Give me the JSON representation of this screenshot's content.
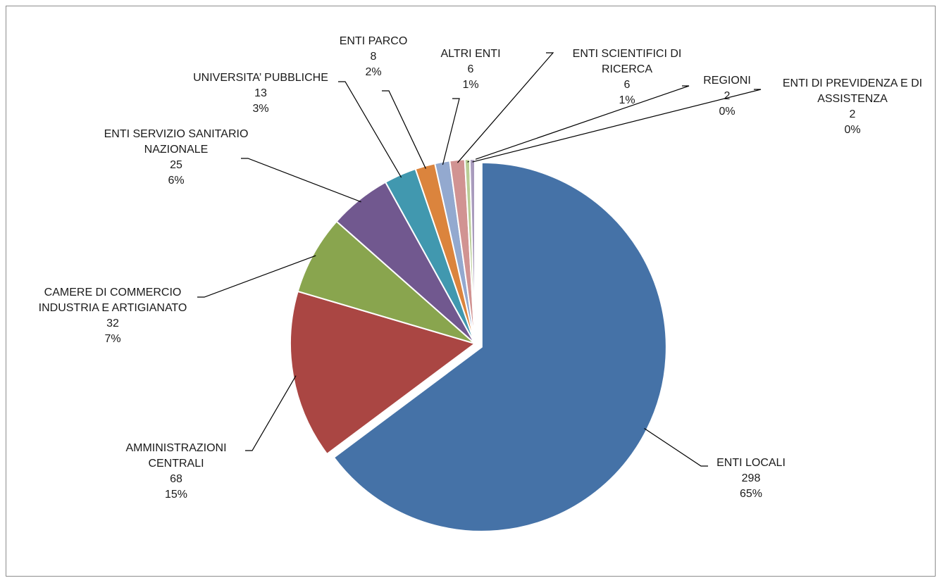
{
  "chart_data": {
    "type": "pie",
    "categories": [
      "ENTI LOCALI",
      "AMMINISTRAZIONI CENTRALI",
      "CAMERE DI COMMERCIO INDUSTRIA E ARTIGIANATO",
      "ENTI SERVIZIO SANITARIO NAZIONALE",
      "UNIVERSITA’ PUBBLICHE",
      "ENTI PARCO",
      "ALTRI ENTI",
      "ENTI SCIENTIFICI DI RICERCA",
      "REGIONI",
      "ENTI DI PREVIDENZA E DI ASSISTENZA"
    ],
    "values": [
      298,
      68,
      32,
      25,
      13,
      8,
      6,
      6,
      2,
      2
    ],
    "percent_labels": [
      "65%",
      "15%",
      "7%",
      "6%",
      "3%",
      "2%",
      "1%",
      "1%",
      "0%",
      "0%"
    ],
    "colors": [
      "#4572a7",
      "#aa4643",
      "#89a54e",
      "#71588f",
      "#4198af",
      "#db843d",
      "#93a9cf",
      "#d19392",
      "#b9cd96",
      "#a99bbd"
    ]
  }
}
